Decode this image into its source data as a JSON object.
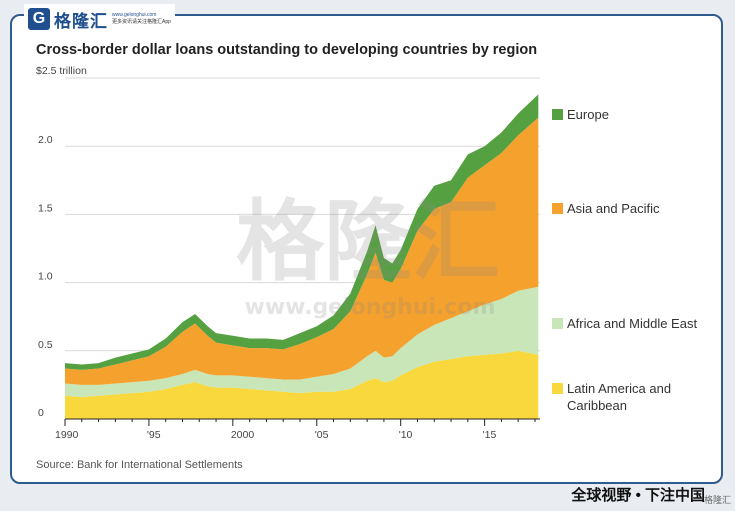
{
  "brand": {
    "name": "格隆汇",
    "mark": "G",
    "tagline": "更多资讯请关注格隆汇App",
    "url": "www.gelonghui.com",
    "watermark": "格隆汇",
    "watermark_url": "www.gelonghui.com"
  },
  "footer": {
    "slogan": "全球视野 • 下注中国",
    "corner_mark": "格隆汇"
  },
  "chart_data": {
    "type": "area",
    "title": "Cross-border dollar loans outstanding to developing countries by region",
    "ylabel": "$2.5 trillion",
    "source": "Source: Bank for International Settlements",
    "xlim": [
      1990,
      2018.3
    ],
    "ylim": [
      0,
      2.5
    ],
    "x_ticks": [
      1990,
      1995,
      2000,
      2005,
      2010,
      2015
    ],
    "x_tick_labels": [
      "1990",
      "'95",
      "2000",
      "'05",
      "'10",
      "'15"
    ],
    "y_ticks": [
      0,
      0.5,
      1.0,
      1.5,
      2.0
    ],
    "y_tick_labels": [
      "0",
      "0.5",
      "1.0",
      "1.5",
      "2.0"
    ],
    "stacked": true,
    "grid": true,
    "legend_position": "right",
    "x": [
      1990,
      1991,
      1992,
      1993,
      1994,
      1995,
      1996,
      1997,
      1997.75,
      1998.5,
      1999,
      2000,
      2001,
      2002,
      2003,
      2004,
      2005,
      2006,
      2007,
      2008,
      2008.5,
      2009,
      2009.5,
      2010,
      2011,
      2012,
      2013,
      2014,
      2015,
      2016,
      2017,
      2018.2
    ],
    "series": [
      {
        "name": "Latin America and Caribbean",
        "color": "#f9d83d",
        "values": [
          0.17,
          0.16,
          0.17,
          0.18,
          0.19,
          0.2,
          0.22,
          0.25,
          0.27,
          0.24,
          0.23,
          0.23,
          0.22,
          0.21,
          0.2,
          0.19,
          0.2,
          0.2,
          0.22,
          0.28,
          0.3,
          0.27,
          0.28,
          0.32,
          0.38,
          0.42,
          0.44,
          0.46,
          0.47,
          0.48,
          0.5,
          0.47
        ]
      },
      {
        "name": "Africa and Middle East",
        "color": "#c8e6b8",
        "values": [
          0.09,
          0.09,
          0.08,
          0.08,
          0.08,
          0.08,
          0.08,
          0.08,
          0.09,
          0.09,
          0.09,
          0.09,
          0.09,
          0.09,
          0.09,
          0.1,
          0.11,
          0.13,
          0.15,
          0.18,
          0.2,
          0.18,
          0.18,
          0.2,
          0.24,
          0.27,
          0.3,
          0.33,
          0.37,
          0.4,
          0.44,
          0.5
        ]
      },
      {
        "name": "Asia and Pacific",
        "color": "#f5a12d",
        "values": [
          0.11,
          0.11,
          0.12,
          0.14,
          0.16,
          0.18,
          0.23,
          0.31,
          0.34,
          0.28,
          0.24,
          0.22,
          0.21,
          0.22,
          0.22,
          0.26,
          0.29,
          0.33,
          0.42,
          0.6,
          0.72,
          0.57,
          0.54,
          0.58,
          0.76,
          0.85,
          0.85,
          0.98,
          1.02,
          1.07,
          1.14,
          1.24
        ]
      },
      {
        "name": "Europe",
        "color": "#55a040",
        "values": [
          0.04,
          0.04,
          0.04,
          0.05,
          0.05,
          0.05,
          0.06,
          0.07,
          0.07,
          0.07,
          0.07,
          0.07,
          0.07,
          0.07,
          0.07,
          0.08,
          0.08,
          0.1,
          0.13,
          0.17,
          0.2,
          0.16,
          0.14,
          0.14,
          0.16,
          0.17,
          0.16,
          0.17,
          0.14,
          0.15,
          0.16,
          0.17
        ]
      }
    ],
    "legend_order": [
      "Europe",
      "Asia and Pacific",
      "Africa and Middle East",
      "Latin America and Caribbean"
    ]
  }
}
